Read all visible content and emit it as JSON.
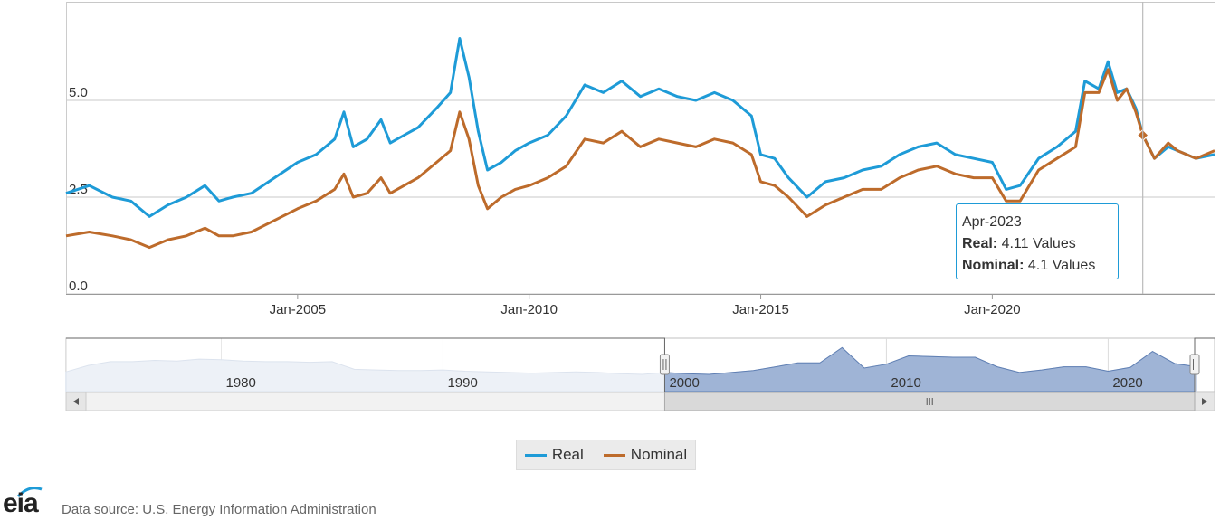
{
  "chart_data": {
    "type": "line",
    "x_ticks": [
      "Jan-2005",
      "Jan-2010",
      "Jan-2015",
      "Jan-2020"
    ],
    "y_ticks": [
      "0.0",
      "2.5",
      "5.0"
    ],
    "ylim": [
      0,
      7.5
    ],
    "xlim": [
      2000.0,
      2024.8
    ],
    "grid": "horizontal",
    "series": [
      {
        "name": "Real",
        "color": "#1e9bd7",
        "x": [
          2000.0,
          2000.5,
          2001.0,
          2001.4,
          2001.8,
          2002.2,
          2002.6,
          2003.0,
          2003.3,
          2003.6,
          2004.0,
          2004.5,
          2005.0,
          2005.4,
          2005.8,
          2006.0,
          2006.2,
          2006.5,
          2006.8,
          2007.0,
          2007.3,
          2007.6,
          2008.0,
          2008.3,
          2008.5,
          2008.7,
          2008.9,
          2009.1,
          2009.4,
          2009.7,
          2010.0,
          2010.4,
          2010.8,
          2011.2,
          2011.6,
          2012.0,
          2012.4,
          2012.8,
          2013.2,
          2013.6,
          2014.0,
          2014.4,
          2014.8,
          2015.0,
          2015.3,
          2015.6,
          2016.0,
          2016.4,
          2016.8,
          2017.2,
          2017.6,
          2018.0,
          2018.4,
          2018.8,
          2019.2,
          2019.6,
          2020.0,
          2020.3,
          2020.6,
          2021.0,
          2021.4,
          2021.8,
          2022.0,
          2022.3,
          2022.5,
          2022.7,
          2022.9,
          2023.1,
          2023.25,
          2023.5,
          2023.8,
          2024.0,
          2024.4,
          2024.8
        ],
        "y": [
          2.6,
          2.8,
          2.5,
          2.4,
          2.0,
          2.3,
          2.5,
          2.8,
          2.4,
          2.5,
          2.6,
          3.0,
          3.4,
          3.6,
          4.0,
          4.7,
          3.8,
          4.0,
          4.5,
          3.9,
          4.1,
          4.3,
          4.8,
          5.2,
          6.6,
          5.6,
          4.2,
          3.2,
          3.4,
          3.7,
          3.9,
          4.1,
          4.6,
          5.4,
          5.2,
          5.5,
          5.1,
          5.3,
          5.1,
          5.0,
          5.2,
          5.0,
          4.6,
          3.6,
          3.5,
          3.0,
          2.5,
          2.9,
          3.0,
          3.2,
          3.3,
          3.6,
          3.8,
          3.9,
          3.6,
          3.5,
          3.4,
          2.7,
          2.8,
          3.5,
          3.8,
          4.2,
          5.5,
          5.3,
          6.0,
          5.2,
          5.3,
          4.8,
          4.11,
          3.5,
          3.8,
          3.7,
          3.5,
          3.6
        ]
      },
      {
        "name": "Nominal",
        "color": "#bd6b2b",
        "x": [
          2000.0,
          2000.5,
          2001.0,
          2001.4,
          2001.8,
          2002.2,
          2002.6,
          2003.0,
          2003.3,
          2003.6,
          2004.0,
          2004.5,
          2005.0,
          2005.4,
          2005.8,
          2006.0,
          2006.2,
          2006.5,
          2006.8,
          2007.0,
          2007.3,
          2007.6,
          2008.0,
          2008.3,
          2008.5,
          2008.7,
          2008.9,
          2009.1,
          2009.4,
          2009.7,
          2010.0,
          2010.4,
          2010.8,
          2011.2,
          2011.6,
          2012.0,
          2012.4,
          2012.8,
          2013.2,
          2013.6,
          2014.0,
          2014.4,
          2014.8,
          2015.0,
          2015.3,
          2015.6,
          2016.0,
          2016.4,
          2016.8,
          2017.2,
          2017.6,
          2018.0,
          2018.4,
          2018.8,
          2019.2,
          2019.6,
          2020.0,
          2020.3,
          2020.6,
          2021.0,
          2021.4,
          2021.8,
          2022.0,
          2022.3,
          2022.5,
          2022.7,
          2022.9,
          2023.1,
          2023.25,
          2023.5,
          2023.8,
          2024.0,
          2024.4,
          2024.8
        ],
        "y": [
          1.5,
          1.6,
          1.5,
          1.4,
          1.2,
          1.4,
          1.5,
          1.7,
          1.5,
          1.5,
          1.6,
          1.9,
          2.2,
          2.4,
          2.7,
          3.1,
          2.5,
          2.6,
          3.0,
          2.6,
          2.8,
          3.0,
          3.4,
          3.7,
          4.7,
          4.0,
          2.8,
          2.2,
          2.5,
          2.7,
          2.8,
          3.0,
          3.3,
          4.0,
          3.9,
          4.2,
          3.8,
          4.0,
          3.9,
          3.8,
          4.0,
          3.9,
          3.6,
          2.9,
          2.8,
          2.5,
          2.0,
          2.3,
          2.5,
          2.7,
          2.7,
          3.0,
          3.2,
          3.3,
          3.1,
          3.0,
          3.0,
          2.4,
          2.4,
          3.2,
          3.5,
          3.8,
          5.2,
          5.2,
          5.8,
          5.0,
          5.3,
          4.7,
          4.1,
          3.5,
          3.9,
          3.7,
          3.5,
          3.7
        ]
      }
    ],
    "navigator": {
      "years": [
        1973,
        1974,
        1975,
        1976,
        1977,
        1978,
        1979,
        1980,
        1981,
        1982,
        1983,
        1984,
        1985,
        1986,
        1987,
        1988,
        1989,
        1990,
        1991,
        1992,
        1993,
        1994,
        1995,
        1996,
        1997,
        1998,
        1999,
        2000,
        2001,
        2002,
        2003,
        2004,
        2005,
        2006,
        2007,
        2008,
        2009,
        2010,
        2011,
        2012,
        2013,
        2014,
        2015,
        2016,
        2017,
        2018,
        2019,
        2020,
        2021,
        2022,
        2023,
        2024
      ],
      "values": [
        2.8,
        3.8,
        4.4,
        4.4,
        4.6,
        4.5,
        4.8,
        4.7,
        4.5,
        4.4,
        4.4,
        4.3,
        4.4,
        3.2,
        3.1,
        3.0,
        3.0,
        3.1,
        2.9,
        2.8,
        2.7,
        2.6,
        2.7,
        2.8,
        2.7,
        2.5,
        2.4,
        2.7,
        2.5,
        2.4,
        2.7,
        3.0,
        3.6,
        4.2,
        4.2,
        6.6,
        3.4,
        4.0,
        5.3,
        5.2,
        5.1,
        5.1,
        3.6,
        2.7,
        3.1,
        3.6,
        3.6,
        2.9,
        3.5,
        6.0,
        4.1,
        3.6
      ],
      "ticks": [
        "1980",
        "1990",
        "2000",
        "2010",
        "2020"
      ],
      "range_start_year": 2000,
      "range_end_year": 2024.8
    }
  },
  "tooltip": {
    "date": "Apr-2023",
    "real_label": "Real:",
    "real_value": "4.11 Values",
    "nominal_label": "Nominal:",
    "nominal_value": "4.1 Values",
    "x": 2023.25
  },
  "legend": {
    "real": "Real",
    "nominal": "Nominal"
  },
  "footer": {
    "logo": "eia",
    "source": "Data source: U.S. Energy Information Administration"
  },
  "colors": {
    "real": "#1e9bd7",
    "nominal": "#bd6b2b",
    "navigator_fill": "#9fb4d6"
  }
}
